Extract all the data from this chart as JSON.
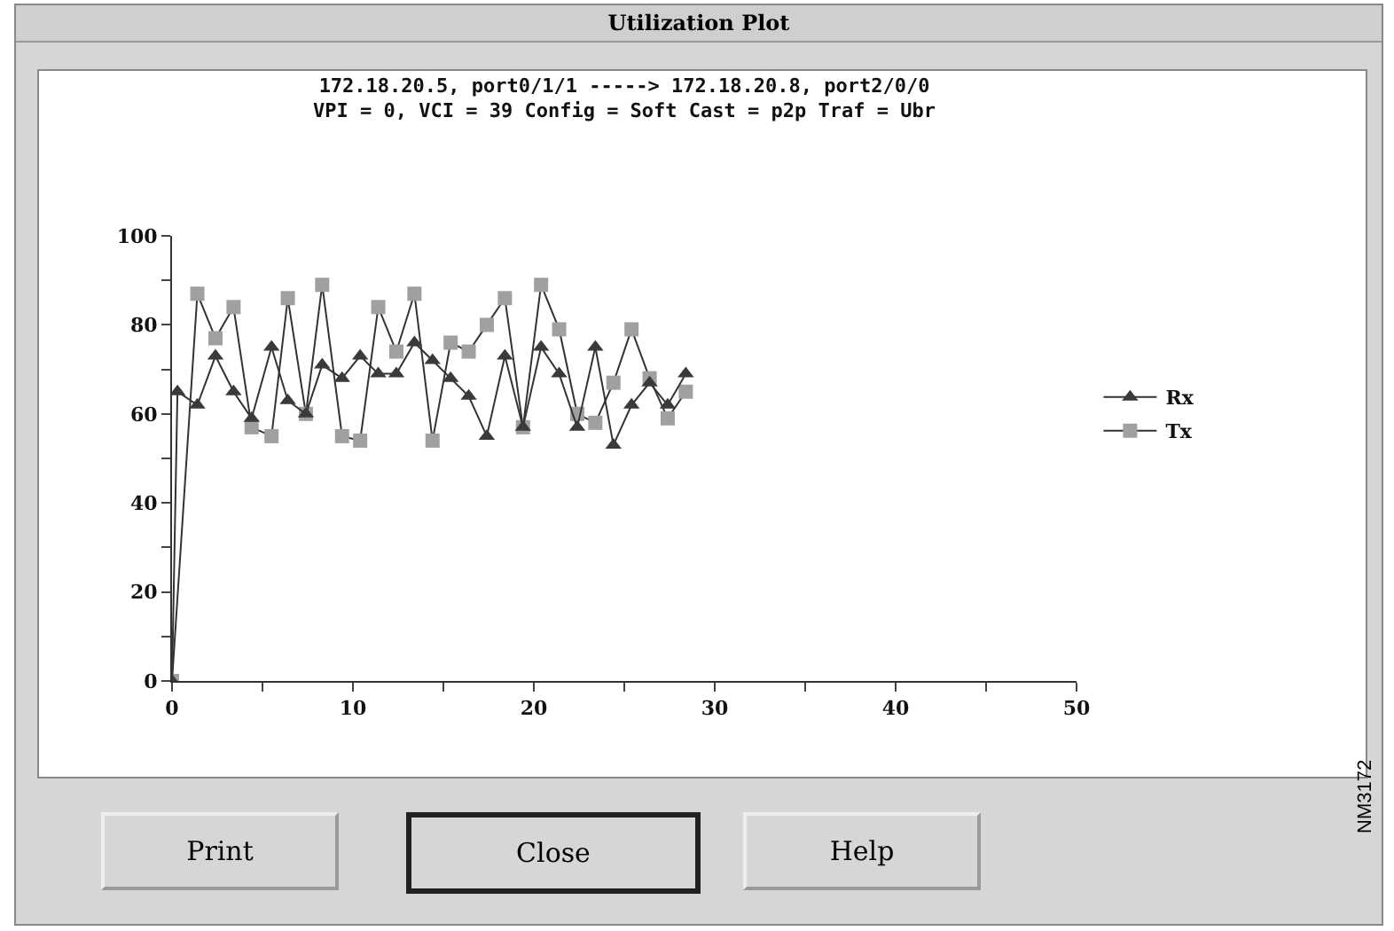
{
  "chart_data": {
    "type": "line",
    "title": "172.18.20.5, port0/1/1 -----> 172.18.20.8, port2/0/0",
    "subtitle": "VPI = 0, VCI = 39 Config = Soft Cast = p2p Traf = Ubr",
    "annotations": [
      "Utilization Plot",
      "Print",
      "Close",
      "Help",
      "NM3172"
    ],
    "series": [
      {
        "name": "Rx",
        "color": "#3a3a3a",
        "marker": "triangle",
        "x": [
          0,
          0.3,
          1.4,
          2.4,
          3.4,
          4.4,
          5.5,
          6.4,
          7.4,
          8.3,
          9.4,
          10.4,
          11.4,
          12.4,
          13.4,
          14.4,
          15.4,
          16.4,
          17.4,
          18.4,
          19.4,
          20.4,
          21.4,
          22.4,
          23.4,
          24.4,
          25.4,
          26.4,
          27.4,
          28.4
        ],
        "values": [
          0,
          65,
          62,
          73,
          65,
          59,
          75,
          63,
          60,
          71,
          68,
          73,
          69,
          69,
          76,
          72,
          68,
          64,
          55,
          73,
          57,
          75,
          69,
          57,
          75,
          53,
          62,
          67,
          62,
          69
        ]
      },
      {
        "name": "Tx",
        "color": "#a0a0a0",
        "marker": "square",
        "x": [
          0,
          1.4,
          2.4,
          3.4,
          4.4,
          5.5,
          6.4,
          7.4,
          8.3,
          9.4,
          10.4,
          11.4,
          12.4,
          13.4,
          14.4,
          15.4,
          16.4,
          17.4,
          18.4,
          19.4,
          20.4,
          21.4,
          22.4,
          23.4,
          24.4,
          25.4,
          26.4,
          27.4,
          28.4
        ],
        "values": [
          0,
          87,
          77,
          84,
          57,
          55,
          86,
          60,
          89,
          55,
          54,
          84,
          74,
          87,
          54,
          76,
          74,
          80,
          86,
          57,
          89,
          79,
          60,
          58,
          67,
          79,
          68,
          59,
          65
        ]
      }
    ],
    "xlim": [
      0,
      50
    ],
    "xticks": [
      0,
      {
        "value": 5,
        "label": null
      },
      10,
      {
        "value": 15,
        "label": null
      },
      20,
      {
        "value": 25,
        "label": null
      },
      30,
      {
        "value": 35,
        "label": null
      },
      40,
      {
        "value": 45,
        "label": null
      },
      50
    ],
    "ylim": [
      0,
      100
    ],
    "yticks": [
      0,
      {
        "value": 10,
        "label": null
      },
      20,
      {
        "value": 30,
        "label": null
      },
      40,
      {
        "value": 50,
        "label": null
      },
      60,
      {
        "value": 70,
        "label": null
      },
      80,
      {
        "value": 90,
        "label": null
      },
      100
    ],
    "grid": false,
    "legend": "right",
    "line_style": "solid"
  }
}
